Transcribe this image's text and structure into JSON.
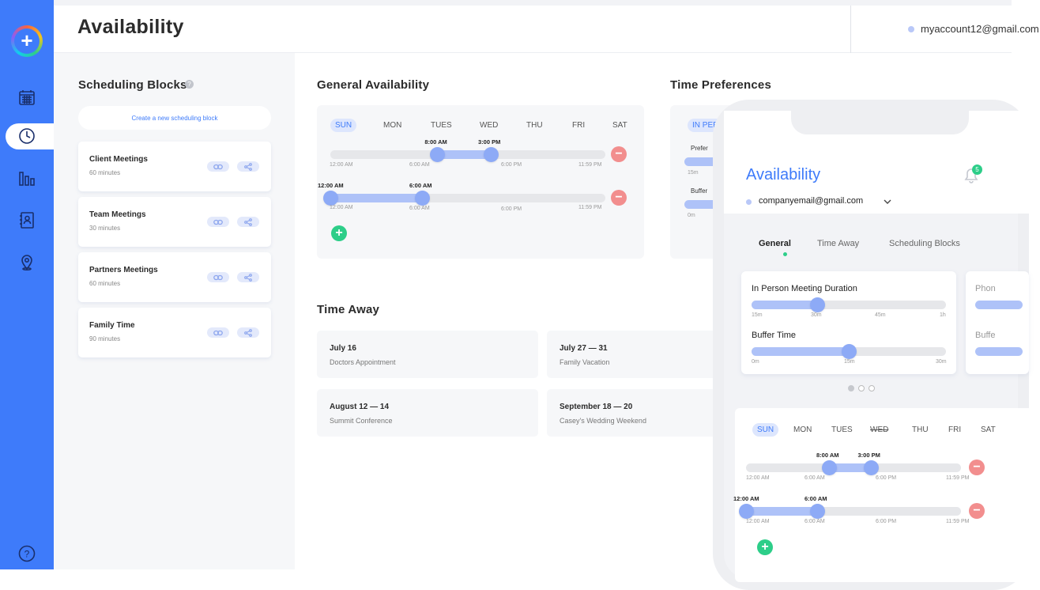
{
  "header": {
    "title": "Availability",
    "account_email": "myaccount12@gmail.com"
  },
  "sidebar": {
    "logo": "plus-logo-icon",
    "items": [
      {
        "icon": "calendar-icon",
        "active": false
      },
      {
        "icon": "clock-icon",
        "active": true
      },
      {
        "icon": "bar-chart-icon",
        "active": false
      },
      {
        "icon": "contacts-icon",
        "active": false
      },
      {
        "icon": "location-pin-icon",
        "active": false
      }
    ],
    "help": "?"
  },
  "scheduling": {
    "title": "Scheduling Blocks",
    "help": "?",
    "create_label": "Create a new scheduling block",
    "blocks": [
      {
        "name": "Client Meetings",
        "duration": "60 minutes"
      },
      {
        "name": "Team Meetings",
        "duration": "30 minutes"
      },
      {
        "name": "Partners Meetings",
        "duration": "60 minutes"
      },
      {
        "name": "Family Time",
        "duration": "90 minutes"
      }
    ]
  },
  "general": {
    "title": "General Availability",
    "days": [
      "SUN",
      "MON",
      "TUES",
      "WED",
      "THU",
      "FRI",
      "SAT"
    ],
    "active_day": "SUN",
    "ticks": [
      "12:00 AM",
      "6:00 AM",
      "6:00 PM",
      "11:59 PM"
    ],
    "ranges": [
      {
        "start": "8:00 AM",
        "end": "3:00 PM"
      },
      {
        "start": "12:00 AM",
        "end": "6:00 AM"
      }
    ],
    "remove": "−",
    "add": "+"
  },
  "time_preferences": {
    "title": "Time Preferences",
    "tab": "IN PER",
    "labels": [
      "Prefer",
      "Buffer"
    ],
    "ticks": [
      "15m",
      "0m"
    ]
  },
  "time_away": {
    "title": "Time Away",
    "items": [
      {
        "date": "July 16",
        "desc": "Doctors Appointment"
      },
      {
        "date": "July 27 — 31",
        "desc": "Family Vacation"
      },
      {
        "date": "August 12 — 14",
        "desc": "Summit Conference"
      },
      {
        "date": "September 18 — 20",
        "desc": "Casey's Wedding Weekend"
      }
    ]
  },
  "phone": {
    "title": "Availability",
    "notification_count": "5",
    "email": "companyemail@gmail.com",
    "tabs": [
      "General",
      "Time Away",
      "Scheduling Blocks"
    ],
    "active_tab": "General",
    "pref_card": {
      "duration_label": "In Person Meeting Duration",
      "duration_ticks": [
        "15m",
        "30m",
        "45m",
        "1h"
      ],
      "duration_value": "30m",
      "buffer_label": "Buffer Time",
      "buffer_ticks": [
        "0m",
        "15m",
        "30m"
      ],
      "buffer_value": "15m"
    },
    "peek_labels": [
      "Phon",
      "Buffe"
    ],
    "days": [
      "SUN",
      "MON",
      "TUES",
      "WED",
      "THU",
      "FRI",
      "SAT"
    ],
    "active_day": "SUN",
    "struck_day": "WED",
    "ticks": [
      "12:00 AM",
      "6:00 AM",
      "6:00 PM",
      "11:59 PM"
    ],
    "ranges": [
      {
        "start": "8:00 AM",
        "end": "3:00 PM"
      },
      {
        "start": "12:00 AM",
        "end": "6:00 AM"
      }
    ],
    "remove": "−",
    "add": "+"
  },
  "colors": {
    "primary": "#3e7bfa",
    "remove": "#f28e8e",
    "add": "#2dce89",
    "slider": "#8daaf6"
  }
}
